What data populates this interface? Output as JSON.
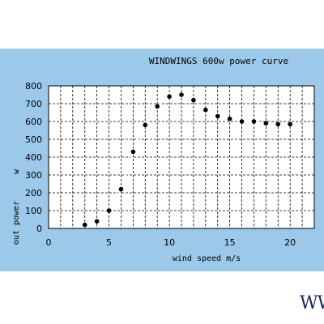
{
  "chart_data": {
    "type": "line",
    "title": "WINDWINGS 600w power curve",
    "xlabel": "wind speed m/s",
    "ylabel": "out power",
    "yunit": "w",
    "xlim": [
      0,
      22
    ],
    "ylim": [
      0,
      800
    ],
    "x_ticks": [
      0,
      5,
      10,
      15,
      20
    ],
    "y_ticks": [
      0,
      100,
      200,
      300,
      400,
      500,
      600,
      700,
      800
    ],
    "grid": true,
    "series": [
      {
        "x": [
          3,
          4,
          5,
          6,
          7,
          8,
          9,
          10,
          11,
          12,
          13,
          14,
          15,
          16,
          17,
          18,
          19,
          20
        ],
        "y": [
          20,
          40,
          100,
          220,
          430,
          580,
          685,
          740,
          750,
          720,
          665,
          630,
          615,
          600,
          600,
          590,
          585,
          585
        ]
      }
    ]
  },
  "logo_text": "WW",
  "colors": {
    "panel": "#9cc8ea",
    "plot_bg": "#ffffff",
    "curve": "#ffffff",
    "marker": "#000000"
  }
}
